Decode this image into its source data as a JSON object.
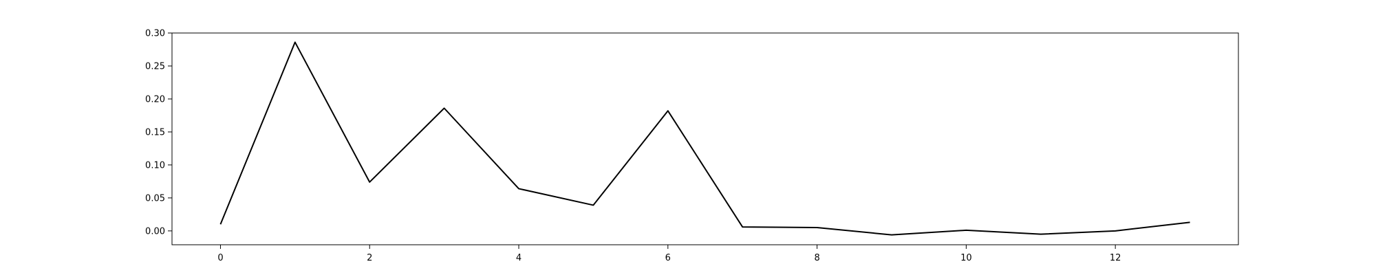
{
  "chart_data": {
    "type": "line",
    "title": "",
    "xlabel": "",
    "ylabel": "",
    "xlim": [
      -0.65,
      13.65
    ],
    "ylim": [
      -0.021,
      0.3
    ],
    "grid": false,
    "legend": "none",
    "x_ticks": [
      "0",
      "2",
      "4",
      "6",
      "8",
      "10",
      "12"
    ],
    "y_ticks": [
      "0.00",
      "0.05",
      "0.10",
      "0.15",
      "0.20",
      "0.25",
      "0.30"
    ],
    "series": [
      {
        "color": "#000000",
        "x": [
          0,
          1,
          2,
          3,
          4,
          5,
          6,
          7,
          8,
          9,
          10,
          11,
          12,
          13
        ],
        "y": [
          0.01,
          0.286,
          0.074,
          0.186,
          0.064,
          0.039,
          0.182,
          0.006,
          0.005,
          -0.006,
          0.001,
          -0.005,
          0.0,
          0.013
        ]
      }
    ]
  }
}
